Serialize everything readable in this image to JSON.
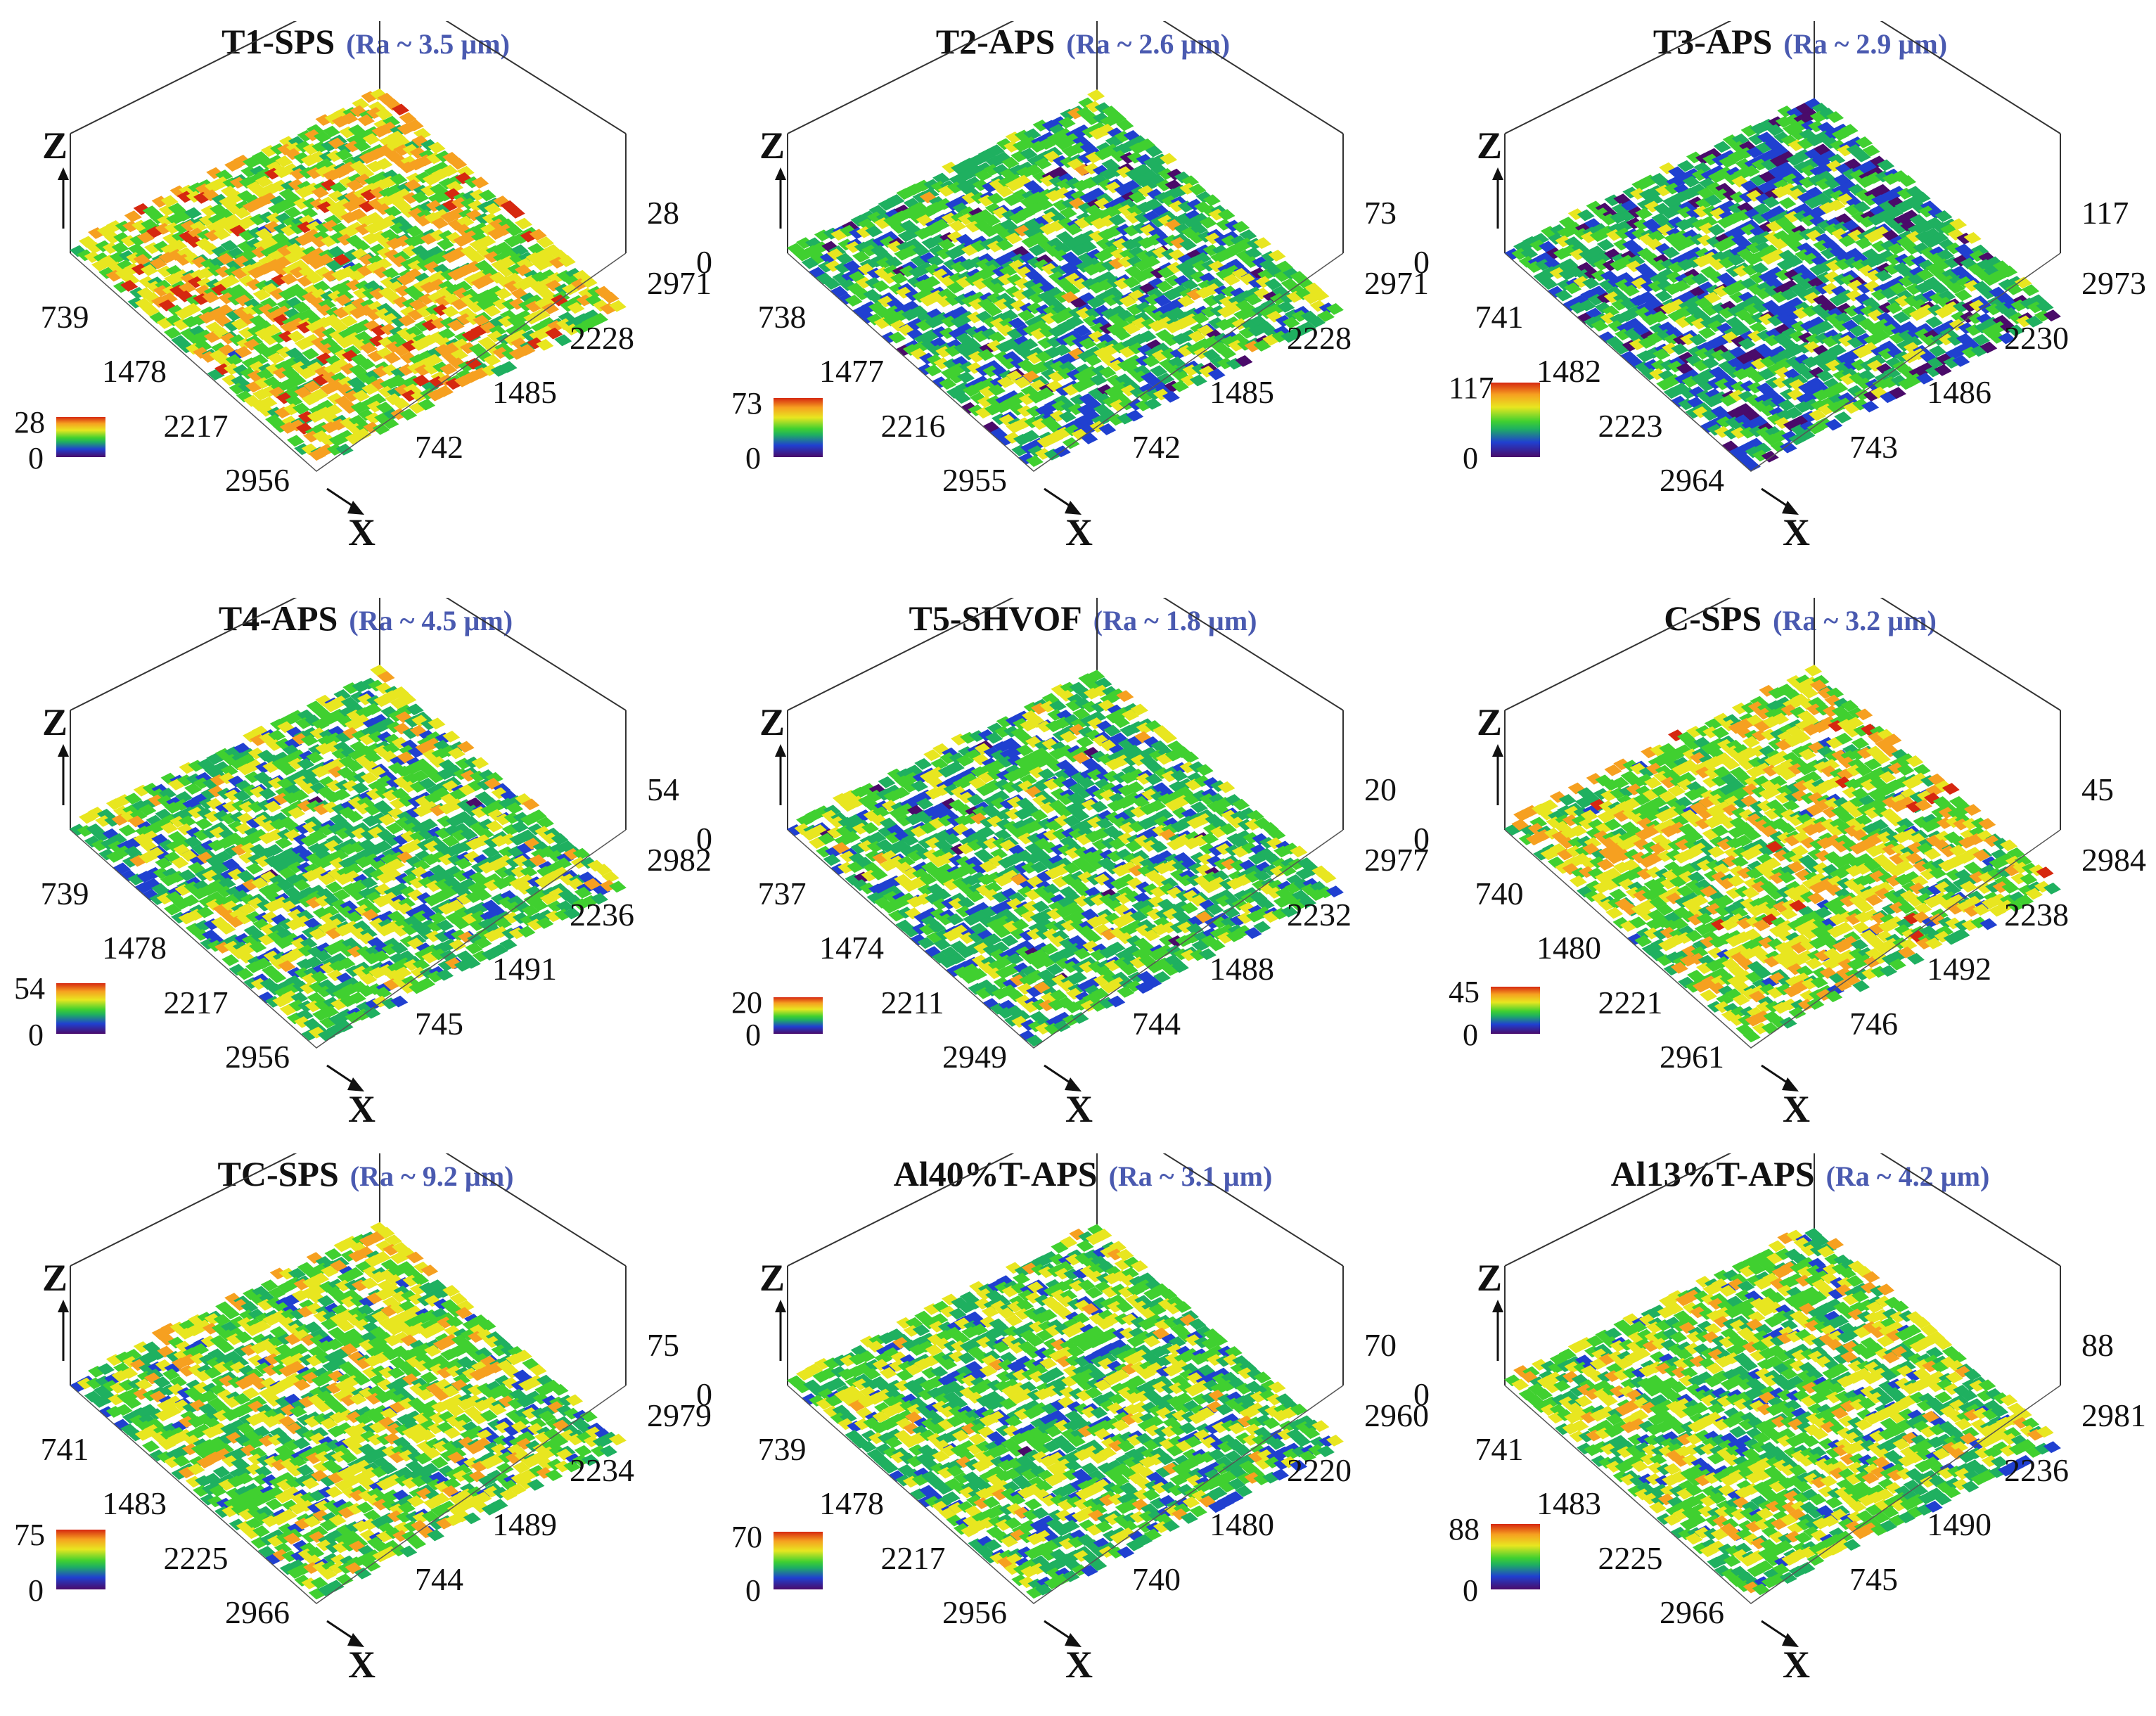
{
  "colors": {
    "ra_text": "#4a5ab0",
    "colormap": [
      "#4a0b6a",
      "#2040d0",
      "#1fb060",
      "#40d030",
      "#e8e620",
      "#f6a020",
      "#d62810"
    ]
  },
  "axis_letters": {
    "z": "Z",
    "x": "X"
  },
  "panels": [
    {
      "title": "T1-SPS",
      "ra": "(Ra ~ 3.5 µm)",
      "zmax": "28",
      "zmin": "0",
      "x_ticks": [
        "2956",
        "2217",
        "1478",
        "739",
        "0"
      ],
      "y_ticks": [
        "742",
        "1485",
        "2228",
        "2971"
      ],
      "surface_level": 0.62
    },
    {
      "title": "T2-APS",
      "ra": "(Ra ~ 2.6 µm)",
      "zmax": "73",
      "zmin": "0",
      "x_ticks": [
        "2955",
        "2216",
        "1477",
        "738",
        "0"
      ],
      "y_ticks": [
        "742",
        "1485",
        "2228",
        "2971"
      ],
      "surface_level": 0.4
    },
    {
      "title": "T3-APS",
      "ra": "(Ra ~ 2.9 µm)",
      "zmax": "117",
      "zmin": "0",
      "x_ticks": [
        "2964",
        "2223",
        "1482",
        "741",
        "0"
      ],
      "y_ticks": [
        "743",
        "1486",
        "2230",
        "2973"
      ],
      "surface_level": 0.33
    },
    {
      "title": "T4-APS",
      "ra": "(Ra ~ 4.5 µm)",
      "zmax": "54",
      "zmin": "0",
      "x_ticks": [
        "2956",
        "2217",
        "1478",
        "739",
        "0"
      ],
      "y_ticks": [
        "745",
        "1491",
        "2236",
        "2982"
      ],
      "surface_level": 0.45
    },
    {
      "title": "T5-SHVOF",
      "ra": "(Ra ~ 1.8 µm)",
      "zmax": "20",
      "zmin": "0",
      "x_ticks": [
        "2949",
        "2211",
        "1474",
        "737",
        "0"
      ],
      "y_ticks": [
        "744",
        "1488",
        "2232",
        "2977"
      ],
      "surface_level": 0.42
    },
    {
      "title": "C-SPS",
      "ra": "(Ra ~ 3.2 µm)",
      "zmax": "45",
      "zmin": "0",
      "x_ticks": [
        "2961",
        "2221",
        "1480",
        "740",
        "0"
      ],
      "y_ticks": [
        "746",
        "1492",
        "2238",
        "2984"
      ],
      "surface_level": 0.58
    },
    {
      "title": "TC-SPS",
      "ra": "(Ra ~ 9.2 µm)",
      "zmax": "75",
      "zmin": "0",
      "x_ticks": [
        "2966",
        "2225",
        "1483",
        "741",
        "0"
      ],
      "y_ticks": [
        "744",
        "1489",
        "2234",
        "2979"
      ],
      "surface_level": 0.52
    },
    {
      "title": "Al40%T-APS",
      "ra": "(Ra ~ 3.1 µm)",
      "zmax": "70",
      "zmin": "0",
      "x_ticks": [
        "2956",
        "2217",
        "1478",
        "739",
        "0"
      ],
      "y_ticks": [
        "740",
        "1480",
        "2220",
        "2960"
      ],
      "surface_level": 0.46
    },
    {
      "title": "Al13%T-APS",
      "ra": "(Ra ~ 4.2 µm)",
      "zmax": "88",
      "zmin": "0",
      "x_ticks": [
        "2966",
        "2225",
        "1483",
        "741",
        "0"
      ],
      "y_ticks": [
        "745",
        "1490",
        "2236",
        "2981"
      ],
      "surface_level": 0.52
    }
  ]
}
